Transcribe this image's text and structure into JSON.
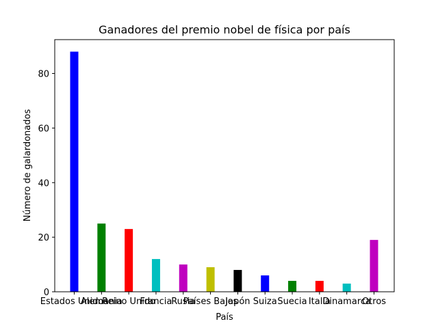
{
  "chart_data": {
    "type": "bar",
    "title": "Ganadores del premio nobel de física por país",
    "xlabel": "País",
    "ylabel": "Número de galardonados",
    "categories": [
      "Estados Unidos",
      "Alemania",
      "Reino Unido",
      "Francia",
      "Rusia",
      "Países Bajos",
      "Japón",
      "Suiza",
      "Suecia",
      "Italia",
      "Dinamarca",
      "Otros"
    ],
    "values": [
      88,
      25,
      23,
      12,
      10,
      9,
      8,
      6,
      4,
      4,
      3,
      19
    ],
    "colors": [
      "#0000ff",
      "#008000",
      "#ff0000",
      "#00bfbf",
      "#bf00bf",
      "#bfbf00",
      "#000000",
      "#0000ff",
      "#008000",
      "#ff0000",
      "#00bfbf",
      "#bf00bf"
    ],
    "ylim": [
      0,
      92.4
    ],
    "yticks": [
      0,
      20,
      40,
      60,
      80
    ],
    "grid": false,
    "legend": "none"
  }
}
